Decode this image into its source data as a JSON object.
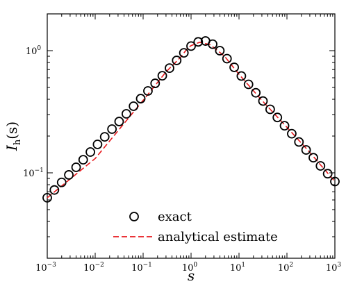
{
  "chart_data": {
    "type": "scatter",
    "xscale": "log",
    "yscale": "log",
    "xlim": [
      0.001,
      1000
    ],
    "ylim": [
      0.02,
      2
    ],
    "xlabel": {
      "main": "s"
    },
    "ylabel": {
      "main": "I",
      "sub": "h",
      "arg": "(s)"
    },
    "x_ticks": [
      {
        "value": 0.001,
        "base": "10",
        "exp": "−3"
      },
      {
        "value": 0.01,
        "base": "10",
        "exp": "−2"
      },
      {
        "value": 0.1,
        "base": "10",
        "exp": "−1"
      },
      {
        "value": 1,
        "base": "10",
        "exp": "0"
      },
      {
        "value": 10,
        "base": "10",
        "exp": "1"
      },
      {
        "value": 100,
        "base": "10",
        "exp": "2"
      },
      {
        "value": 1000,
        "base": "10",
        "exp": "3"
      }
    ],
    "y_ticks": [
      {
        "value": 0.1,
        "base": "10",
        "exp": "−1"
      },
      {
        "value": 1,
        "base": "10",
        "exp": "0"
      }
    ],
    "legend_position": "bottom-center",
    "series": [
      {
        "name": "exact",
        "marker": "open-circle",
        "color": "#000000",
        "points": [
          [
            0.001,
            0.0625
          ],
          [
            0.00141,
            0.0724
          ],
          [
            0.002,
            0.0835
          ],
          [
            0.00282,
            0.0962
          ],
          [
            0.004,
            0.111
          ],
          [
            0.00562,
            0.128
          ],
          [
            0.00794,
            0.148
          ],
          [
            0.0112,
            0.171
          ],
          [
            0.0158,
            0.197
          ],
          [
            0.0224,
            0.228
          ],
          [
            0.0316,
            0.263
          ],
          [
            0.0447,
            0.304
          ],
          [
            0.0631,
            0.351
          ],
          [
            0.0891,
            0.405
          ],
          [
            0.126,
            0.468
          ],
          [
            0.178,
            0.54
          ],
          [
            0.251,
            0.623
          ],
          [
            0.355,
            0.72
          ],
          [
            0.501,
            0.832
          ],
          [
            0.708,
            0.96
          ],
          [
            1.0,
            1.09
          ],
          [
            1.41,
            1.18
          ],
          [
            2.0,
            1.2
          ],
          [
            2.82,
            1.13
          ],
          [
            3.98,
            1.0
          ],
          [
            5.62,
            0.86
          ],
          [
            7.94,
            0.73
          ],
          [
            11.2,
            0.62
          ],
          [
            15.8,
            0.53
          ],
          [
            22.4,
            0.452
          ],
          [
            31.6,
            0.387
          ],
          [
            44.7,
            0.331
          ],
          [
            63.1,
            0.284
          ],
          [
            89.1,
            0.243
          ],
          [
            126,
            0.209
          ],
          [
            178,
            0.179
          ],
          [
            251,
            0.154
          ],
          [
            355,
            0.133
          ],
          [
            501,
            0.114
          ],
          [
            708,
            0.0984
          ],
          [
            1000,
            0.0849
          ]
        ]
      },
      {
        "name": "analytical estimate",
        "line": "dashed",
        "color": "#e8181c",
        "points": [
          [
            0.001,
            0.0625
          ],
          [
            0.01,
            0.131
          ],
          [
            0.1,
            0.392
          ],
          [
            0.3,
            0.67
          ],
          [
            0.6,
            0.88
          ],
          [
            0.85,
            1.05
          ],
          [
            1.0,
            1.1
          ],
          [
            1.5,
            1.17
          ],
          [
            2.5,
            1.12
          ],
          [
            5,
            0.9
          ],
          [
            10,
            0.64
          ],
          [
            30,
            0.392
          ],
          [
            100,
            0.236
          ],
          [
            300,
            0.147
          ],
          [
            1000,
            0.0849
          ]
        ]
      }
    ]
  }
}
